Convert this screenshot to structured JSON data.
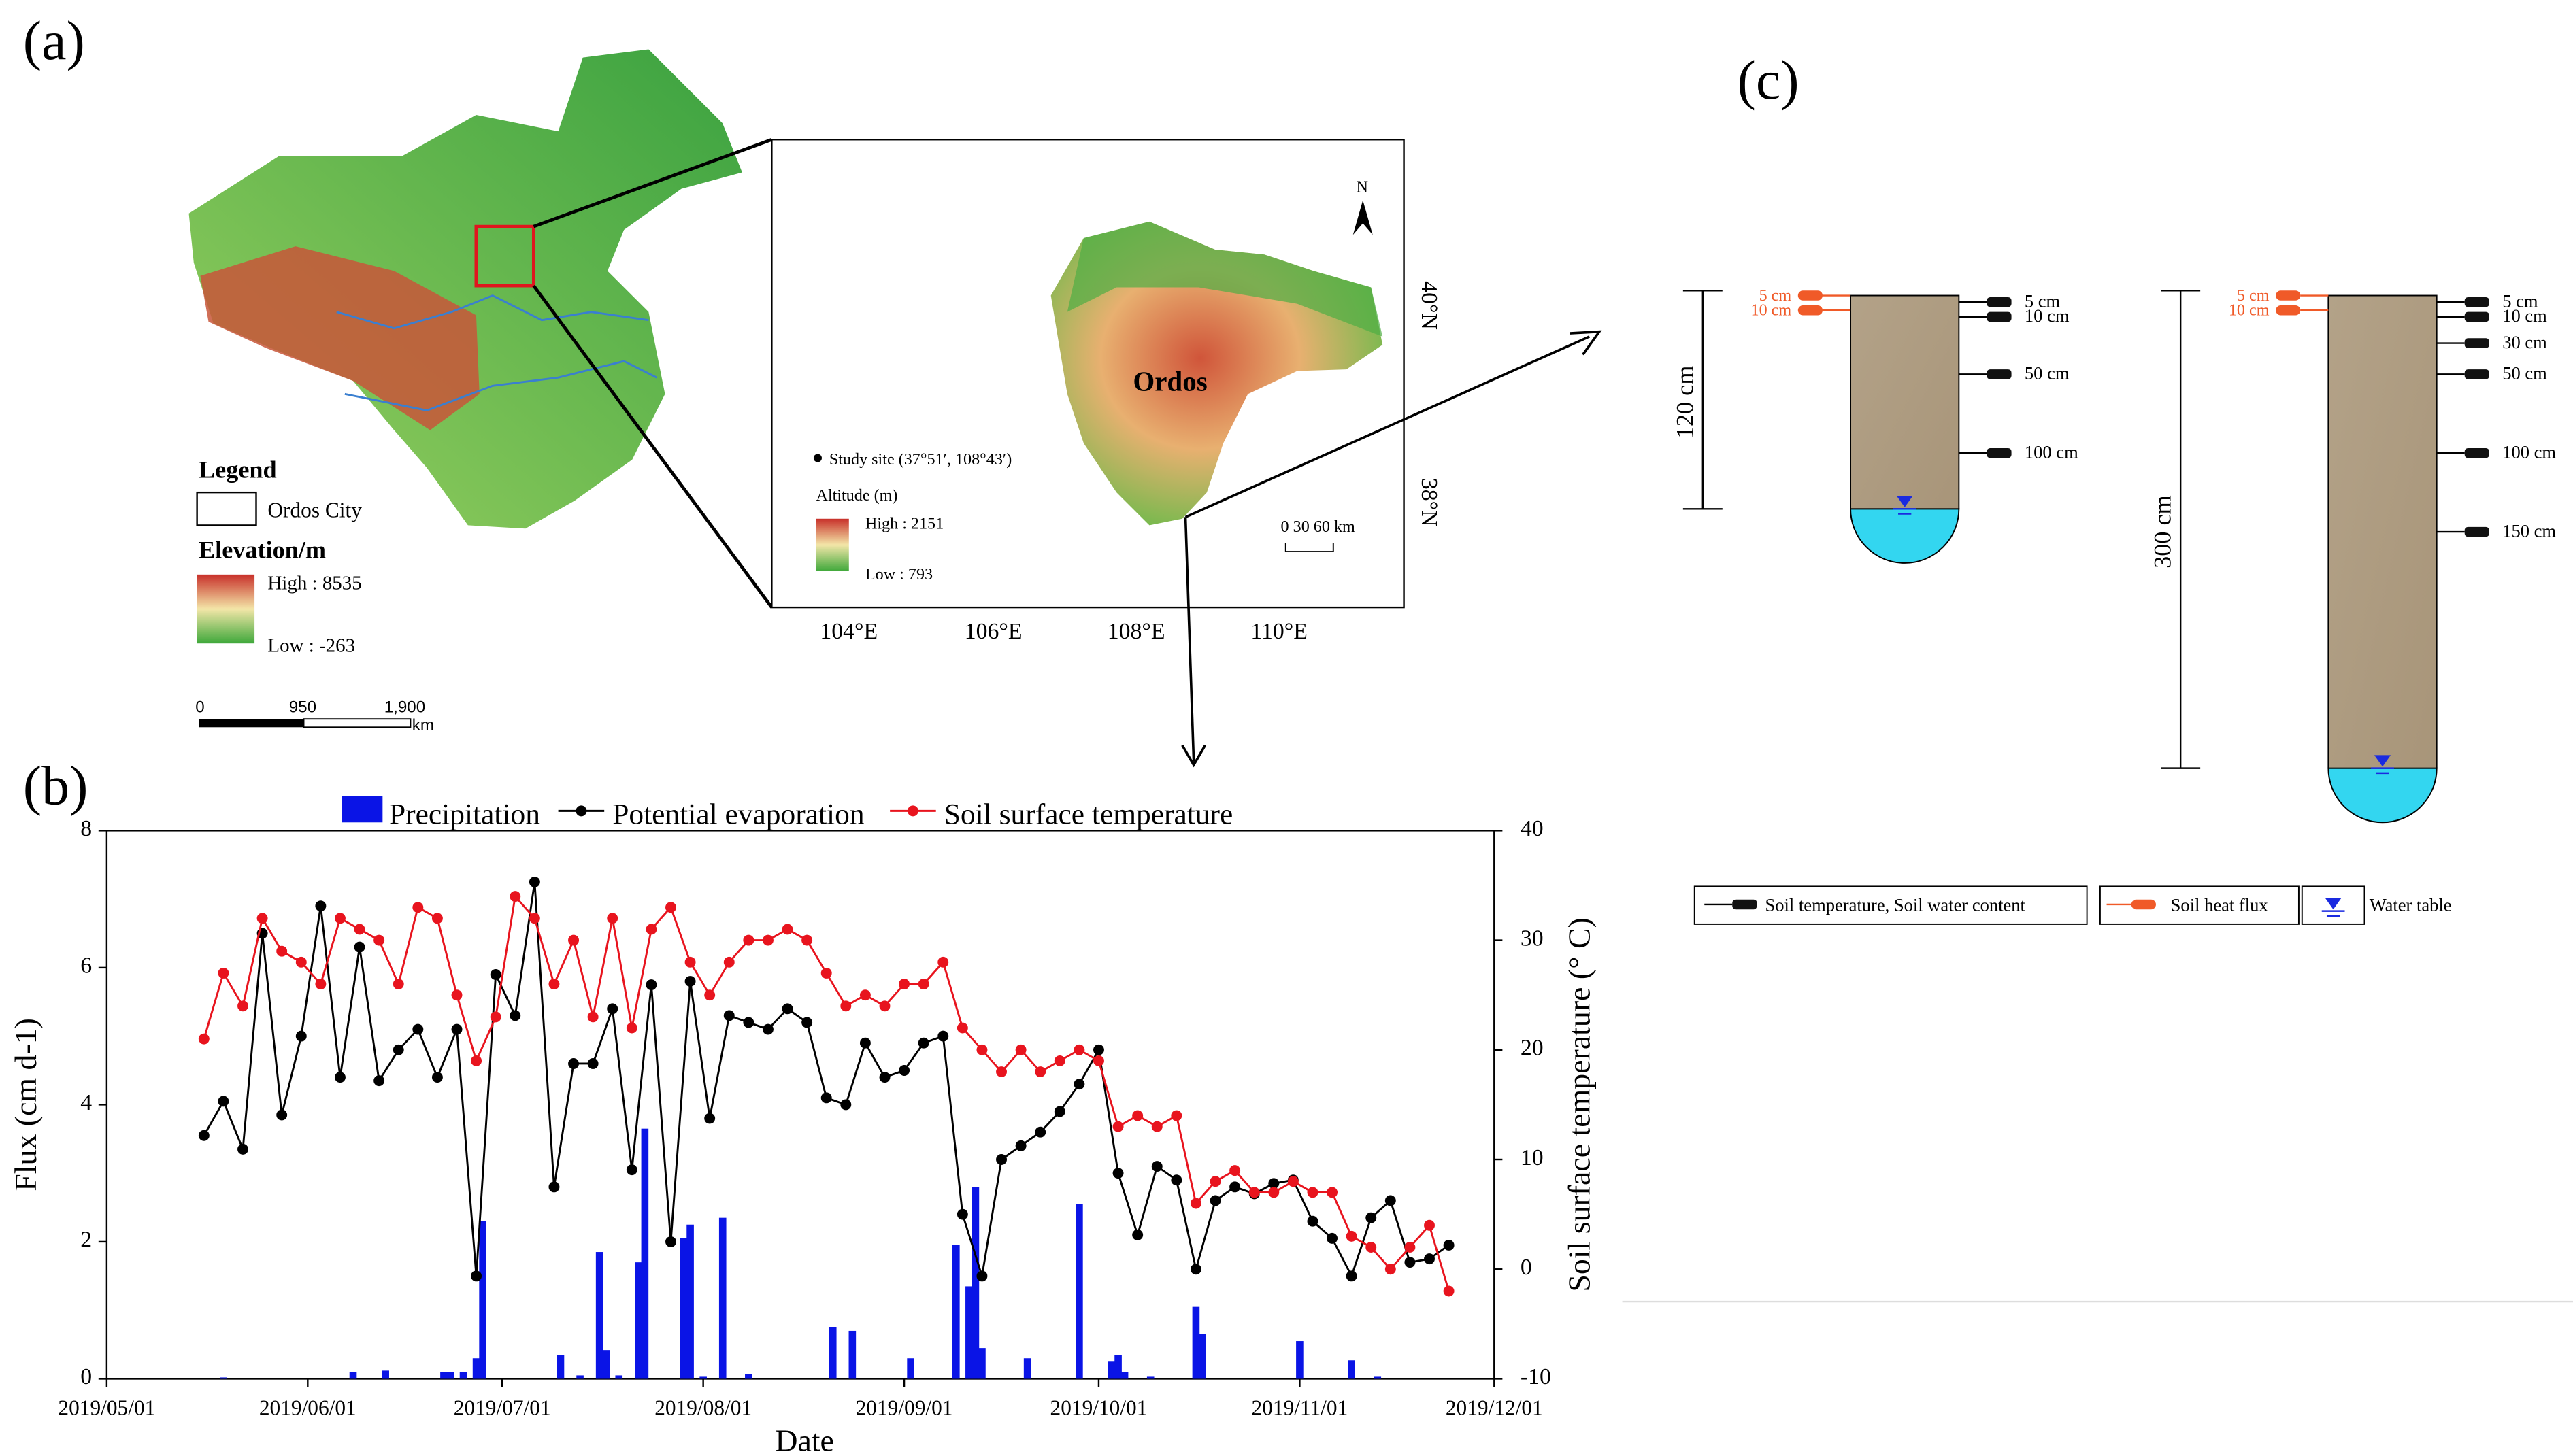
{
  "panel_a": {
    "label": "(a)",
    "legend_title": "Legend",
    "legend_item": "Ordos City",
    "elevation_title": "Elevation/m",
    "elevation_high": "High : 8535",
    "elevation_low": "Low : -263",
    "scale": [
      "0",
      "950",
      "1,900"
    ],
    "scale_unit": "km",
    "inset": {
      "north": "N",
      "study_site": "Study site (37°51′, 108°43′)",
      "altitude_title": "Altitude (m)",
      "altitude_high": "High : 2151",
      "altitude_low": "Low : 793",
      "region": "Ordos",
      "scale": "0  30 60 km",
      "lon_labels": [
        "104°E",
        "106°E",
        "108°E",
        "110°E"
      ],
      "lat_labels": [
        "40°N",
        "38°N"
      ]
    }
  },
  "chart_data": {
    "type": "bar_line",
    "label": "(b)",
    "y_label": "Flux (cm d-1)",
    "y2_label": "Soil  surface temperature (° C)",
    "x_label": "Date",
    "xlim": [
      "2019/05/01",
      "2019/12/01"
    ],
    "xticks": [
      "2019/05/01",
      "2019/06/01",
      "2019/07/01",
      "2019/08/01",
      "2019/09/01",
      "2019/10/01",
      "2019/11/01",
      "2019/12/01"
    ],
    "ylim": [
      0,
      8
    ],
    "yticks": [
      0,
      2,
      4,
      6,
      8
    ],
    "y2lim": [
      -10,
      40
    ],
    "y2ticks": [
      -10,
      0,
      10,
      20,
      30,
      40
    ],
    "x": [
      "2019/05/16",
      "2019/05/19",
      "2019/05/22",
      "2019/05/25",
      "2019/05/28",
      "2019/05/31",
      "2019/06/03",
      "2019/06/06",
      "2019/06/09",
      "2019/06/12",
      "2019/06/15",
      "2019/06/18",
      "2019/06/21",
      "2019/06/24",
      "2019/06/27",
      "2019/06/30",
      "2019/07/03",
      "2019/07/06",
      "2019/07/09",
      "2019/07/12",
      "2019/07/15",
      "2019/07/18",
      "2019/07/21",
      "2019/07/24",
      "2019/07/27",
      "2019/07/30",
      "2019/08/02",
      "2019/08/05",
      "2019/08/08",
      "2019/08/11",
      "2019/08/14",
      "2019/08/17",
      "2019/08/20",
      "2019/08/23",
      "2019/08/26",
      "2019/08/29",
      "2019/09/01",
      "2019/09/04",
      "2019/09/07",
      "2019/09/10",
      "2019/09/13",
      "2019/09/16",
      "2019/09/19",
      "2019/09/22",
      "2019/09/25",
      "2019/09/28",
      "2019/10/01",
      "2019/10/04",
      "2019/10/07",
      "2019/10/10",
      "2019/10/13",
      "2019/10/16",
      "2019/10/19",
      "2019/10/22",
      "2019/10/25",
      "2019/10/28",
      "2019/10/31",
      "2019/11/03",
      "2019/11/06",
      "2019/11/09",
      "2019/11/12",
      "2019/11/15",
      "2019/11/18",
      "2019/11/21",
      "2019/11/24"
    ],
    "series": [
      {
        "name": "Precipitation",
        "type": "bar",
        "color": "#0a14e6",
        "x": [
          "2019/05/19",
          "2019/06/08",
          "2019/06/13",
          "2019/06/22",
          "2019/06/23",
          "2019/06/25",
          "2019/06/27",
          "2019/06/28",
          "2019/07/10",
          "2019/07/13",
          "2019/07/16",
          "2019/07/17",
          "2019/07/19",
          "2019/07/22",
          "2019/07/23",
          "2019/07/29",
          "2019/07/30",
          "2019/08/01",
          "2019/08/04",
          "2019/08/08",
          "2019/08/21",
          "2019/08/24",
          "2019/09/02",
          "2019/09/09",
          "2019/09/11",
          "2019/09/12",
          "2019/09/13",
          "2019/09/20",
          "2019/09/28",
          "2019/10/03",
          "2019/10/04",
          "2019/10/05",
          "2019/10/09",
          "2019/10/16",
          "2019/10/17",
          "2019/11/01",
          "2019/11/09",
          "2019/11/13"
        ],
        "values": [
          0.02,
          0.1,
          0.12,
          0.1,
          0.1,
          0.1,
          0.3,
          2.3,
          0.35,
          0.05,
          1.85,
          0.42,
          0.05,
          1.7,
          3.65,
          2.05,
          2.25,
          0.03,
          2.35,
          0.07,
          0.75,
          0.7,
          0.3,
          1.95,
          1.35,
          2.8,
          0.45,
          0.3,
          2.55,
          0.25,
          0.35,
          0.1,
          0.03,
          1.05,
          0.65,
          0.55,
          0.27,
          0.03
        ]
      },
      {
        "name": "Potential evaporation",
        "type": "line",
        "color": "#000000",
        "values": [
          3.55,
          4.05,
          3.35,
          6.5,
          3.85,
          5.0,
          6.9,
          4.4,
          6.3,
          4.35,
          4.8,
          5.1,
          4.4,
          5.1,
          1.5,
          5.9,
          5.3,
          7.25,
          2.8,
          4.6,
          4.6,
          5.4,
          3.05,
          5.75,
          2.0,
          5.8,
          3.8,
          5.3,
          5.2,
          5.1,
          5.4,
          5.2,
          4.1,
          4.0,
          4.9,
          4.4,
          4.5,
          4.9,
          5.0,
          2.4,
          1.5,
          3.2,
          3.4,
          3.6,
          3.9,
          4.3,
          4.8,
          3.0,
          2.1,
          3.1,
          2.9,
          1.6,
          2.6,
          2.8,
          2.7,
          2.85,
          2.9,
          2.3,
          2.05,
          1.5,
          2.35,
          2.6,
          1.7,
          1.75,
          1.95
        ]
      },
      {
        "name": "Soil surface temperature",
        "type": "line",
        "axis": "y2",
        "color": "#e8141e",
        "values": [
          21,
          27,
          24,
          32,
          29,
          28,
          26,
          32,
          31,
          30,
          26,
          33,
          32,
          25,
          19,
          23,
          34,
          32,
          26,
          30,
          23,
          32,
          22,
          31,
          33,
          28,
          25,
          28,
          30,
          30,
          31,
          30,
          27,
          24,
          25,
          24,
          26,
          26,
          28,
          22,
          20,
          18,
          20,
          18,
          19,
          20,
          19,
          13,
          14,
          13,
          14,
          6,
          8,
          9,
          7,
          7,
          8,
          7,
          7,
          3,
          2,
          0,
          2,
          4,
          -2
        ]
      }
    ]
  },
  "panel_c": {
    "label": "(c)",
    "profiles": [
      {
        "depth": "120 cm",
        "heat_flux": [
          "5 cm",
          "10 cm"
        ],
        "sensors": [
          "5 cm",
          "10 cm",
          "50 cm",
          "100 cm"
        ]
      },
      {
        "depth": "300 cm",
        "heat_flux": [
          "5 cm",
          "10 cm"
        ],
        "sensors": [
          "5 cm",
          "10 cm",
          "30 cm",
          "50 cm",
          "100 cm",
          "150 cm"
        ]
      }
    ],
    "legend": [
      "Soil temperature, Soil water content",
      "Soil heat flux",
      "Water table"
    ]
  }
}
